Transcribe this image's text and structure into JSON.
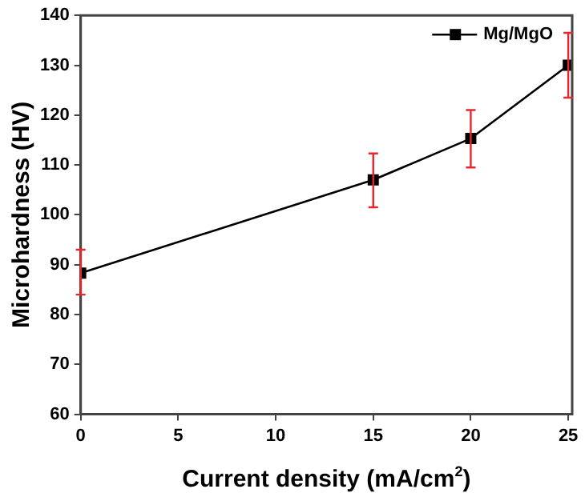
{
  "chart_data": {
    "type": "line",
    "xlabel": "Current density (mA/cm$^{2}$)",
    "ylabel": "Microhardness (HV)",
    "x": [
      0,
      15,
      20,
      25
    ],
    "series": [
      {
        "name": "Mg/MgO",
        "color": "#000000",
        "values": [
          88.3,
          107,
          115.3,
          130
        ],
        "errors": [
          [
            84,
            93
          ],
          [
            101.5,
            112.3
          ],
          [
            109.5,
            121
          ],
          [
            123.5,
            136.5
          ]
        ]
      }
    ],
    "xlim": [
      0,
      25.2
    ],
    "xticks": [
      0,
      5,
      10,
      15,
      20,
      25
    ],
    "ylim": [
      60,
      140
    ],
    "yticks": [
      60,
      70,
      80,
      90,
      100,
      110,
      120,
      130,
      140
    ],
    "grid": false,
    "legend": "top right",
    "marker": "square",
    "line_style": "solid"
  }
}
